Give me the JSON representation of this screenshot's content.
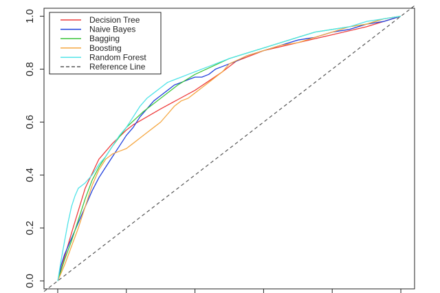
{
  "chart_data": {
    "type": "line",
    "title": "",
    "xlabel": "",
    "ylabel": "",
    "xlim": [
      -0.04,
      1.04
    ],
    "ylim": [
      -0.03,
      1.03
    ],
    "y_ticks": [
      0.0,
      0.2,
      0.4,
      0.6,
      0.8,
      1.0
    ],
    "y_tick_labels": [
      "0.0",
      "0.2",
      "0.4",
      "0.6",
      "0.8",
      "1.0"
    ],
    "x_ticks": [
      0.0,
      0.2,
      0.4,
      0.6,
      0.8,
      1.0
    ],
    "grid": false,
    "legend_position": "top-left",
    "series": [
      {
        "name": "Decision Tree",
        "color": "#ee3b3b",
        "style": "solid",
        "x": [
          0.0,
          0.04,
          0.08,
          0.12,
          0.16,
          0.2,
          0.22,
          0.3,
          0.4,
          0.48,
          0.52,
          0.6,
          0.7,
          0.8,
          0.9,
          1.0
        ],
        "y": [
          0.0,
          0.18,
          0.35,
          0.46,
          0.52,
          0.57,
          0.59,
          0.65,
          0.72,
          0.79,
          0.83,
          0.87,
          0.9,
          0.93,
          0.96,
          1.0
        ]
      },
      {
        "name": "Naive Bayes",
        "color": "#1f3fdd",
        "style": "solid",
        "x": [
          0.0,
          0.01,
          0.02,
          0.03,
          0.04,
          0.05,
          0.06,
          0.07,
          0.08,
          0.1,
          0.12,
          0.14,
          0.16,
          0.18,
          0.2,
          0.22,
          0.24,
          0.26,
          0.28,
          0.3,
          0.32,
          0.34,
          0.36,
          0.38,
          0.4,
          0.42,
          0.44,
          0.46,
          0.48,
          0.5,
          0.52,
          0.55,
          0.6,
          0.65,
          0.7,
          0.75,
          0.8,
          0.85,
          0.9,
          0.95,
          1.0
        ],
        "y": [
          0.0,
          0.06,
          0.1,
          0.13,
          0.16,
          0.19,
          0.22,
          0.25,
          0.28,
          0.34,
          0.39,
          0.43,
          0.47,
          0.51,
          0.55,
          0.58,
          0.62,
          0.65,
          0.68,
          0.7,
          0.72,
          0.74,
          0.75,
          0.76,
          0.77,
          0.77,
          0.78,
          0.8,
          0.81,
          0.82,
          0.83,
          0.85,
          0.87,
          0.89,
          0.91,
          0.92,
          0.94,
          0.95,
          0.97,
          0.98,
          1.0
        ]
      },
      {
        "name": "Bagging",
        "color": "#3ec63e",
        "style": "solid",
        "x": [
          0.0,
          0.02,
          0.04,
          0.06,
          0.08,
          0.1,
          0.12,
          0.14,
          0.16,
          0.2,
          0.25,
          0.3,
          0.35,
          0.4,
          0.45,
          0.5,
          0.55,
          0.6,
          0.65,
          0.7,
          0.75,
          0.8,
          0.85,
          0.9,
          0.95,
          1.0
        ],
        "y": [
          0.0,
          0.08,
          0.15,
          0.23,
          0.31,
          0.38,
          0.43,
          0.47,
          0.51,
          0.58,
          0.64,
          0.69,
          0.74,
          0.78,
          0.81,
          0.84,
          0.86,
          0.88,
          0.9,
          0.92,
          0.94,
          0.95,
          0.96,
          0.97,
          0.99,
          1.0
        ]
      },
      {
        "name": "Boosting",
        "color": "#f5a742",
        "style": "solid",
        "x": [
          0.0,
          0.02,
          0.04,
          0.06,
          0.08,
          0.1,
          0.12,
          0.14,
          0.16,
          0.18,
          0.2,
          0.22,
          0.24,
          0.26,
          0.28,
          0.3,
          0.32,
          0.34,
          0.36,
          0.38,
          0.4,
          0.42,
          0.44,
          0.46,
          0.48,
          0.5,
          0.55,
          0.6,
          0.65,
          0.7,
          0.75,
          0.8,
          0.85,
          0.9,
          0.95,
          1.0
        ],
        "y": [
          0.0,
          0.06,
          0.13,
          0.2,
          0.28,
          0.36,
          0.42,
          0.46,
          0.48,
          0.49,
          0.5,
          0.52,
          0.54,
          0.56,
          0.58,
          0.6,
          0.63,
          0.66,
          0.68,
          0.69,
          0.71,
          0.73,
          0.75,
          0.77,
          0.79,
          0.82,
          0.85,
          0.87,
          0.89,
          0.9,
          0.92,
          0.94,
          0.96,
          0.97,
          0.99,
          1.0
        ]
      },
      {
        "name": "Random Forest",
        "color": "#4fe3e8",
        "style": "solid",
        "x": [
          0.0,
          0.01,
          0.02,
          0.03,
          0.04,
          0.05,
          0.06,
          0.07,
          0.08,
          0.1,
          0.12,
          0.14,
          0.16,
          0.18,
          0.2,
          0.22,
          0.24,
          0.26,
          0.28,
          0.3,
          0.32,
          0.34,
          0.36,
          0.38,
          0.4,
          0.42,
          0.44,
          0.46,
          0.48,
          0.5,
          0.55,
          0.6,
          0.65,
          0.7,
          0.75,
          0.8,
          0.85,
          0.9,
          0.95,
          1.0
        ],
        "y": [
          0.0,
          0.08,
          0.15,
          0.22,
          0.28,
          0.32,
          0.35,
          0.36,
          0.37,
          0.4,
          0.44,
          0.47,
          0.51,
          0.55,
          0.58,
          0.62,
          0.66,
          0.69,
          0.71,
          0.73,
          0.75,
          0.76,
          0.77,
          0.78,
          0.79,
          0.8,
          0.81,
          0.82,
          0.83,
          0.84,
          0.86,
          0.88,
          0.9,
          0.92,
          0.94,
          0.95,
          0.96,
          0.98,
          0.99,
          1.0
        ]
      },
      {
        "name": "Reference Line",
        "color": "#555555",
        "style": "dashed",
        "x": [
          -0.04,
          1.04
        ],
        "y": [
          -0.04,
          1.04
        ]
      }
    ]
  }
}
